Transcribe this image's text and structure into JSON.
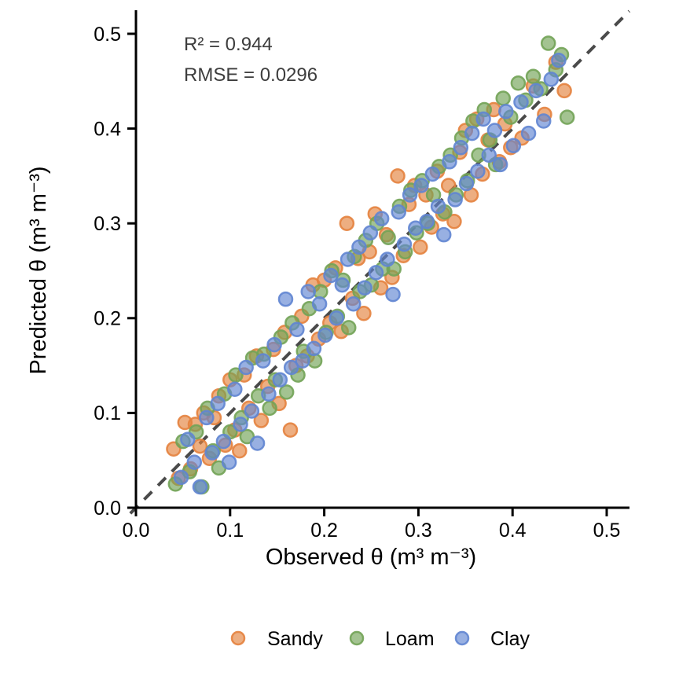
{
  "chart_data": {
    "type": "scatter",
    "title": "",
    "xlabel": "Observed θ (m³ m⁻³)",
    "ylabel": "Predicted θ (m³ m⁻³)",
    "x_axis": {
      "tick_values": [
        0.0,
        0.1,
        0.2,
        0.3,
        0.4,
        0.5
      ],
      "tick_labels": [
        "0.0",
        "0.1",
        "0.2",
        "0.3",
        "0.4",
        "0.5"
      ],
      "range": [
        -0.006,
        0.524
      ]
    },
    "y_axis": {
      "tick_values": [
        0.0,
        0.1,
        0.2,
        0.3,
        0.4,
        0.5
      ],
      "tick_labels": [
        "0.0",
        "0.1",
        "0.2",
        "0.3",
        "0.4",
        "0.5"
      ],
      "range": [
        -0.006,
        0.524
      ]
    },
    "grid": false,
    "legend_position": "bottom",
    "annotations": [
      {
        "text": "R² = 0.944"
      },
      {
        "text": "RMSE = 0.0296"
      }
    ],
    "reference_line": {
      "type": "identity",
      "slope": 1,
      "intercept": 0,
      "style": "dashed",
      "color": "#4A4A4A"
    },
    "marker": {
      "radius_px": 8.5,
      "fill_opacity": 0.65,
      "stroke_opacity": 0.9,
      "stroke_width_px": 2.5
    },
    "series": [
      {
        "name": "Sandy",
        "color": "#E4823E",
        "points": [
          [
            0.04,
            0.062
          ],
          [
            0.045,
            0.031
          ],
          [
            0.052,
            0.09
          ],
          [
            0.058,
            0.041
          ],
          [
            0.063,
            0.088
          ],
          [
            0.068,
            0.065
          ],
          [
            0.072,
            0.1
          ],
          [
            0.078,
            0.052
          ],
          [
            0.083,
            0.095
          ],
          [
            0.088,
            0.118
          ],
          [
            0.095,
            0.066
          ],
          [
            0.1,
            0.135
          ],
          [
            0.105,
            0.082
          ],
          [
            0.11,
            0.06
          ],
          [
            0.115,
            0.14
          ],
          [
            0.12,
            0.105
          ],
          [
            0.128,
            0.16
          ],
          [
            0.133,
            0.092
          ],
          [
            0.14,
            0.128
          ],
          [
            0.146,
            0.167
          ],
          [
            0.152,
            0.11
          ],
          [
            0.158,
            0.185
          ],
          [
            0.164,
            0.082
          ],
          [
            0.17,
            0.15
          ],
          [
            0.176,
            0.202
          ],
          [
            0.182,
            0.16
          ],
          [
            0.188,
            0.235
          ],
          [
            0.194,
            0.178
          ],
          [
            0.2,
            0.24
          ],
          [
            0.206,
            0.195
          ],
          [
            0.212,
            0.253
          ],
          [
            0.218,
            0.186
          ],
          [
            0.224,
            0.3
          ],
          [
            0.23,
            0.221
          ],
          [
            0.236,
            0.263
          ],
          [
            0.242,
            0.205
          ],
          [
            0.248,
            0.27
          ],
          [
            0.254,
            0.31
          ],
          [
            0.26,
            0.232
          ],
          [
            0.266,
            0.288
          ],
          [
            0.272,
            0.243
          ],
          [
            0.278,
            0.35
          ],
          [
            0.284,
            0.266
          ],
          [
            0.29,
            0.32
          ],
          [
            0.296,
            0.34
          ],
          [
            0.302,
            0.275
          ],
          [
            0.308,
            0.33
          ],
          [
            0.314,
            0.296
          ],
          [
            0.32,
            0.355
          ],
          [
            0.326,
            0.31
          ],
          [
            0.332,
            0.34
          ],
          [
            0.338,
            0.302
          ],
          [
            0.344,
            0.375
          ],
          [
            0.35,
            0.398
          ],
          [
            0.356,
            0.33
          ],
          [
            0.362,
            0.41
          ],
          [
            0.368,
            0.352
          ],
          [
            0.374,
            0.388
          ],
          [
            0.38,
            0.42
          ],
          [
            0.386,
            0.365
          ],
          [
            0.392,
            0.405
          ],
          [
            0.398,
            0.38
          ],
          [
            0.41,
            0.39
          ],
          [
            0.422,
            0.445
          ],
          [
            0.434,
            0.415
          ],
          [
            0.446,
            0.47
          ],
          [
            0.455,
            0.44
          ]
        ]
      },
      {
        "name": "Loam",
        "color": "#72A356",
        "points": [
          [
            0.042,
            0.025
          ],
          [
            0.05,
            0.07
          ],
          [
            0.057,
            0.038
          ],
          [
            0.064,
            0.08
          ],
          [
            0.07,
            0.022
          ],
          [
            0.076,
            0.105
          ],
          [
            0.082,
            0.06
          ],
          [
            0.088,
            0.042
          ],
          [
            0.094,
            0.12
          ],
          [
            0.1,
            0.08
          ],
          [
            0.106,
            0.14
          ],
          [
            0.112,
            0.095
          ],
          [
            0.118,
            0.075
          ],
          [
            0.124,
            0.158
          ],
          [
            0.13,
            0.118
          ],
          [
            0.136,
            0.162
          ],
          [
            0.142,
            0.105
          ],
          [
            0.148,
            0.135
          ],
          [
            0.154,
            0.18
          ],
          [
            0.16,
            0.122
          ],
          [
            0.166,
            0.195
          ],
          [
            0.172,
            0.14
          ],
          [
            0.178,
            0.165
          ],
          [
            0.184,
            0.21
          ],
          [
            0.19,
            0.155
          ],
          [
            0.196,
            0.228
          ],
          [
            0.202,
            0.185
          ],
          [
            0.208,
            0.25
          ],
          [
            0.214,
            0.202
          ],
          [
            0.22,
            0.24
          ],
          [
            0.226,
            0.19
          ],
          [
            0.232,
            0.265
          ],
          [
            0.238,
            0.228
          ],
          [
            0.244,
            0.282
          ],
          [
            0.25,
            0.235
          ],
          [
            0.256,
            0.3
          ],
          [
            0.262,
            0.252
          ],
          [
            0.268,
            0.285
          ],
          [
            0.274,
            0.252
          ],
          [
            0.28,
            0.318
          ],
          [
            0.286,
            0.27
          ],
          [
            0.292,
            0.335
          ],
          [
            0.298,
            0.29
          ],
          [
            0.304,
            0.345
          ],
          [
            0.31,
            0.3
          ],
          [
            0.316,
            0.33
          ],
          [
            0.322,
            0.36
          ],
          [
            0.328,
            0.312
          ],
          [
            0.334,
            0.372
          ],
          [
            0.34,
            0.33
          ],
          [
            0.346,
            0.39
          ],
          [
            0.352,
            0.345
          ],
          [
            0.358,
            0.408
          ],
          [
            0.364,
            0.372
          ],
          [
            0.37,
            0.42
          ],
          [
            0.376,
            0.388
          ],
          [
            0.382,
            0.362
          ],
          [
            0.39,
            0.432
          ],
          [
            0.398,
            0.412
          ],
          [
            0.406,
            0.448
          ],
          [
            0.414,
            0.43
          ],
          [
            0.422,
            0.455
          ],
          [
            0.43,
            0.442
          ],
          [
            0.438,
            0.49
          ],
          [
            0.446,
            0.462
          ],
          [
            0.452,
            0.478
          ],
          [
            0.458,
            0.412
          ]
        ]
      },
      {
        "name": "Clay",
        "color": "#6185D2",
        "points": [
          [
            0.048,
            0.032
          ],
          [
            0.055,
            0.072
          ],
          [
            0.062,
            0.048
          ],
          [
            0.068,
            0.022
          ],
          [
            0.075,
            0.095
          ],
          [
            0.081,
            0.058
          ],
          [
            0.087,
            0.11
          ],
          [
            0.093,
            0.07
          ],
          [
            0.099,
            0.048
          ],
          [
            0.105,
            0.125
          ],
          [
            0.111,
            0.088
          ],
          [
            0.117,
            0.148
          ],
          [
            0.123,
            0.102
          ],
          [
            0.129,
            0.068
          ],
          [
            0.135,
            0.155
          ],
          [
            0.141,
            0.12
          ],
          [
            0.147,
            0.172
          ],
          [
            0.153,
            0.135
          ],
          [
            0.159,
            0.22
          ],
          [
            0.165,
            0.148
          ],
          [
            0.171,
            0.188
          ],
          [
            0.177,
            0.155
          ],
          [
            0.183,
            0.228
          ],
          [
            0.189,
            0.168
          ],
          [
            0.195,
            0.215
          ],
          [
            0.201,
            0.182
          ],
          [
            0.207,
            0.245
          ],
          [
            0.213,
            0.2
          ],
          [
            0.219,
            0.235
          ],
          [
            0.225,
            0.262
          ],
          [
            0.231,
            0.215
          ],
          [
            0.237,
            0.275
          ],
          [
            0.243,
            0.232
          ],
          [
            0.249,
            0.29
          ],
          [
            0.255,
            0.248
          ],
          [
            0.261,
            0.305
          ],
          [
            0.267,
            0.262
          ],
          [
            0.273,
            0.225
          ],
          [
            0.279,
            0.312
          ],
          [
            0.285,
            0.278
          ],
          [
            0.291,
            0.33
          ],
          [
            0.297,
            0.295
          ],
          [
            0.303,
            0.34
          ],
          [
            0.309,
            0.302
          ],
          [
            0.315,
            0.352
          ],
          [
            0.321,
            0.318
          ],
          [
            0.327,
            0.288
          ],
          [
            0.333,
            0.365
          ],
          [
            0.339,
            0.325
          ],
          [
            0.345,
            0.38
          ],
          [
            0.351,
            0.342
          ],
          [
            0.357,
            0.395
          ],
          [
            0.363,
            0.355
          ],
          [
            0.369,
            0.41
          ],
          [
            0.375,
            0.372
          ],
          [
            0.381,
            0.398
          ],
          [
            0.387,
            0.362
          ],
          [
            0.393,
            0.418
          ],
          [
            0.401,
            0.382
          ],
          [
            0.409,
            0.428
          ],
          [
            0.417,
            0.395
          ],
          [
            0.425,
            0.44
          ],
          [
            0.433,
            0.408
          ],
          [
            0.441,
            0.452
          ],
          [
            0.449,
            0.472
          ]
        ]
      }
    ]
  }
}
